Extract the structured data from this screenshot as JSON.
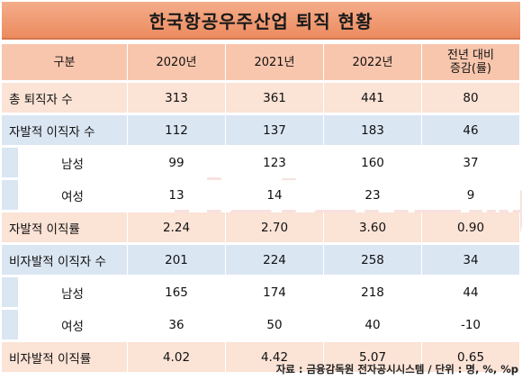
{
  "title": "한국항공우주산업 퇴직 현황",
  "headers": [
    "구분",
    "2020년",
    "2021년",
    "2022년",
    "전년 대비",
    "증감(률)"
  ],
  "rows": [
    {
      "label": "총 퇴직자 수",
      "values": [
        "313",
        "361",
        "441",
        "80"
      ]
    },
    {
      "label": "자발적 이직자 수",
      "values": [
        "112",
        "137",
        "183",
        "46"
      ]
    },
    {
      "label": "남성",
      "values": [
        "99",
        "123",
        "160",
        "37"
      ]
    },
    {
      "label": "여성",
      "values": [
        "13",
        "14",
        "23",
        "9"
      ]
    },
    {
      "label": "자발적 이직률",
      "values": [
        "2.24",
        "2.70",
        "3.60",
        "0.90"
      ]
    },
    {
      "label": "비자발적 이직자 수",
      "values": [
        "201",
        "224",
        "258",
        "34"
      ]
    },
    {
      "label": "남성",
      "values": [
        "165",
        "174",
        "218",
        "44"
      ]
    },
    {
      "label": "여성",
      "values": [
        "36",
        "50",
        "40",
        "-10"
      ]
    },
    {
      "label": "비자발적 이직률",
      "values": [
        "4.02",
        "4.42",
        "5.07",
        "0.65"
      ]
    }
  ],
  "watermark": "datanews",
  "source": "자료 : 금융감독원 전자공시시스템 / 단위 : 명, %, %p",
  "colors": {
    "title": "#ec8b5f",
    "header": "#f8c6ad",
    "orange_row": "#fbe3d6",
    "blue_row": "#dbe6f3"
  }
}
